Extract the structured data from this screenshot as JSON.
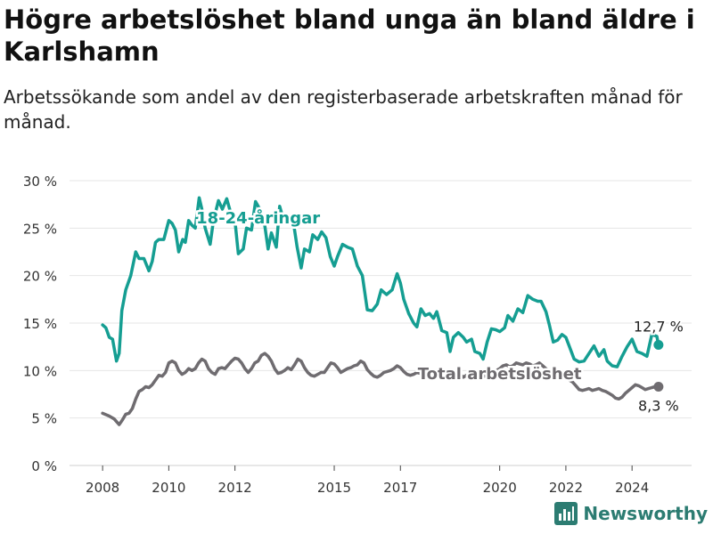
{
  "header": {
    "title": "Högre arbetslöshet bland unga än bland äldre i Karlshamn",
    "subtitle": "Arbetssökande som andel av den registerbaserade arbetskraften månad för månad."
  },
  "brand": {
    "name": "Newsworthy",
    "icon": "bar-chart-logo-icon",
    "color": "#2c7c72"
  },
  "chart_data": {
    "type": "line",
    "title": "Högre arbetslöshet bland unga än bland äldre i Karlshamn",
    "subtitle": "Arbetssökande som andel av den registerbaserade arbetskraften månad för månad.",
    "xlabel": "",
    "ylabel": "",
    "xlim": [
      2007.0,
      2025.8
    ],
    "ylim": [
      0,
      30
    ],
    "y_ticks": [
      0,
      5,
      10,
      15,
      20,
      25,
      30
    ],
    "y_tick_labels": [
      "0 %",
      "5 %",
      "10 %",
      "15 %",
      "20 %",
      "25 %",
      "30 %"
    ],
    "x_ticks": [
      2008,
      2010,
      2012,
      2015,
      2017,
      2020,
      2022,
      2024
    ],
    "x_tick_labels": [
      "2008",
      "2010",
      "2012",
      "2015",
      "2017",
      "2020",
      "2022",
      "2024"
    ],
    "grid": "horizontal",
    "legend": "none",
    "series": [
      {
        "name": "18-24-åringar",
        "color": "#159e92",
        "end_label": "12,7 %",
        "x": [
          2008.0,
          2008.1,
          2008.2,
          2008.3,
          2008.42,
          2008.5,
          2008.58,
          2008.7,
          2008.85,
          2009.0,
          2009.1,
          2009.25,
          2009.4,
          2009.5,
          2009.6,
          2009.7,
          2009.85,
          2010.0,
          2010.1,
          2010.2,
          2010.3,
          2010.42,
          2010.5,
          2010.6,
          2010.7,
          2010.8,
          2010.92,
          2011.0,
          2011.1,
          2011.25,
          2011.35,
          2011.5,
          2011.62,
          2011.75,
          2011.88,
          2012.0,
          2012.1,
          2012.25,
          2012.35,
          2012.5,
          2012.62,
          2012.75,
          2012.88,
          2013.0,
          2013.1,
          2013.25,
          2013.35,
          2013.5,
          2013.62,
          2013.75,
          2013.88,
          2014.0,
          2014.1,
          2014.25,
          2014.35,
          2014.5,
          2014.62,
          2014.75,
          2014.88,
          2015.0,
          2015.1,
          2015.25,
          2015.4,
          2015.55,
          2015.7,
          2015.85,
          2016.0,
          2016.15,
          2016.3,
          2016.42,
          2016.58,
          2016.75,
          2016.9,
          2017.0,
          2017.1,
          2017.25,
          2017.4,
          2017.5,
          2017.62,
          2017.75,
          2017.88,
          2018.0,
          2018.1,
          2018.25,
          2018.4,
          2018.5,
          2018.6,
          2018.75,
          2018.9,
          2019.0,
          2019.15,
          2019.25,
          2019.4,
          2019.5,
          2019.62,
          2019.75,
          2019.88,
          2020.0,
          2020.15,
          2020.25,
          2020.4,
          2020.55,
          2020.7,
          2020.85,
          2021.0,
          2021.15,
          2021.25,
          2021.4,
          2021.5,
          2021.62,
          2021.75,
          2021.88,
          2022.0,
          2022.1,
          2022.25,
          2022.4,
          2022.55,
          2022.7,
          2022.85,
          2023.0,
          2023.15,
          2023.25,
          2023.4,
          2023.55,
          2023.7,
          2023.85,
          2024.0,
          2024.15,
          2024.3,
          2024.45,
          2024.6,
          2024.75,
          2024.8
        ],
        "y": [
          14.8,
          14.5,
          13.5,
          13.3,
          11.0,
          11.8,
          16.3,
          18.5,
          20.0,
          22.5,
          21.8,
          21.8,
          20.5,
          21.5,
          23.5,
          23.8,
          23.8,
          25.8,
          25.5,
          24.8,
          22.5,
          23.8,
          23.5,
          25.8,
          25.3,
          25.0,
          28.2,
          27.0,
          25.0,
          23.3,
          25.8,
          27.9,
          27.0,
          28.1,
          26.5,
          25.8,
          22.3,
          22.8,
          25.0,
          24.8,
          27.8,
          27.0,
          25.8,
          22.8,
          24.5,
          23.0,
          27.3,
          25.5,
          25.8,
          26.0,
          23.0,
          20.8,
          22.8,
          22.5,
          24.3,
          23.8,
          24.6,
          24.0,
          22.0,
          21.0,
          22.0,
          23.3,
          23.0,
          22.8,
          21.0,
          20.0,
          16.4,
          16.3,
          17.0,
          18.5,
          18.0,
          18.5,
          20.2,
          19.2,
          17.5,
          16.0,
          15.0,
          14.6,
          16.5,
          15.8,
          16.0,
          15.5,
          16.2,
          14.2,
          14.0,
          12.0,
          13.5,
          14.0,
          13.5,
          13.0,
          13.3,
          12.0,
          11.8,
          11.2,
          13.0,
          14.4,
          14.3,
          14.1,
          14.5,
          15.8,
          15.2,
          16.5,
          16.1,
          17.9,
          17.5,
          17.3,
          17.3,
          16.2,
          14.8,
          13.0,
          13.2,
          13.8,
          13.5,
          12.6,
          11.2,
          10.9,
          11.0,
          11.8,
          12.6,
          11.5,
          12.2,
          11.0,
          10.5,
          10.4,
          11.5,
          12.5,
          13.3,
          12.0,
          11.8,
          11.5,
          13.8,
          13.6,
          12.7
        ],
        "y_unit": "%"
      },
      {
        "name": "Total arbetslöshet",
        "color": "#6f6c70",
        "end_label": "8,3 %",
        "x": [
          2008.0,
          2008.2,
          2008.35,
          2008.5,
          2008.6,
          2008.7,
          2008.8,
          2008.9,
          2009.0,
          2009.1,
          2009.2,
          2009.3,
          2009.4,
          2009.5,
          2009.6,
          2009.7,
          2009.8,
          2009.9,
          2010.0,
          2010.1,
          2010.2,
          2010.3,
          2010.4,
          2010.5,
          2010.6,
          2010.7,
          2010.8,
          2010.9,
          2011.0,
          2011.1,
          2011.2,
          2011.3,
          2011.4,
          2011.5,
          2011.6,
          2011.7,
          2011.8,
          2011.9,
          2012.0,
          2012.1,
          2012.2,
          2012.3,
          2012.4,
          2012.5,
          2012.6,
          2012.7,
          2012.8,
          2012.9,
          2013.0,
          2013.1,
          2013.2,
          2013.3,
          2013.4,
          2013.5,
          2013.6,
          2013.7,
          2013.8,
          2013.9,
          2014.0,
          2014.1,
          2014.2,
          2014.3,
          2014.4,
          2014.5,
          2014.6,
          2014.7,
          2014.8,
          2014.9,
          2015.0,
          2015.1,
          2015.2,
          2015.3,
          2015.4,
          2015.5,
          2015.6,
          2015.7,
          2015.8,
          2015.9,
          2016.0,
          2016.1,
          2016.2,
          2016.3,
          2016.4,
          2016.5,
          2016.6,
          2016.7,
          2016.8,
          2016.9,
          2017.0,
          2017.1,
          2017.2,
          2017.3,
          2017.4,
          2017.5,
          2017.6,
          2017.7,
          2017.8,
          2017.9,
          2018.0,
          2018.1,
          2018.2,
          2018.3,
          2018.4,
          2018.5,
          2018.6,
          2018.7,
          2018.8,
          2018.9,
          2019.0,
          2019.2,
          2019.4,
          2019.6,
          2019.8,
          2020.0,
          2020.1,
          2020.2,
          2020.3,
          2020.4,
          2020.5,
          2020.6,
          2020.7,
          2020.8,
          2020.9,
          2021.0,
          2021.1,
          2021.2,
          2021.3,
          2021.4,
          2021.5,
          2021.6,
          2021.7,
          2021.8,
          2021.9,
          2022.0,
          2022.1,
          2022.2,
          2022.3,
          2022.4,
          2022.5,
          2022.6,
          2022.7,
          2022.8,
          2022.9,
          2023.0,
          2023.1,
          2023.2,
          2023.3,
          2023.4,
          2023.5,
          2023.6,
          2023.7,
          2023.8,
          2023.9,
          2024.0,
          2024.1,
          2024.2,
          2024.3,
          2024.4,
          2024.5,
          2024.6,
          2024.7,
          2024.8
        ],
        "y": [
          5.5,
          5.2,
          4.9,
          4.3,
          4.8,
          5.4,
          5.5,
          6.0,
          7.0,
          7.8,
          8.0,
          8.3,
          8.2,
          8.5,
          9.0,
          9.5,
          9.4,
          9.8,
          10.8,
          11.0,
          10.8,
          10.0,
          9.6,
          9.8,
          10.2,
          10.0,
          10.2,
          10.8,
          11.2,
          11.0,
          10.2,
          9.8,
          9.6,
          10.2,
          10.3,
          10.2,
          10.6,
          11.0,
          11.3,
          11.2,
          10.8,
          10.2,
          9.8,
          10.2,
          10.8,
          11.0,
          11.6,
          11.8,
          11.5,
          11.0,
          10.2,
          9.7,
          9.8,
          10.0,
          10.3,
          10.1,
          10.6,
          11.2,
          11.0,
          10.3,
          9.8,
          9.5,
          9.4,
          9.6,
          9.8,
          9.8,
          10.3,
          10.8,
          10.7,
          10.3,
          9.8,
          10.0,
          10.2,
          10.3,
          10.5,
          10.6,
          11.0,
          10.8,
          10.1,
          9.7,
          9.4,
          9.3,
          9.5,
          9.8,
          9.9,
          10.0,
          10.2,
          10.5,
          10.3,
          9.9,
          9.6,
          9.5,
          9.6,
          9.8,
          9.7,
          9.6,
          9.8,
          10.0,
          9.8,
          9.6,
          9.5,
          9.6,
          9.5,
          9.4,
          9.3,
          9.5,
          9.6,
          9.3,
          9.5,
          9.4,
          9.2,
          9.5,
          9.8,
          10.2,
          10.5,
          10.6,
          10.4,
          10.5,
          10.8,
          10.7,
          10.6,
          10.8,
          10.7,
          10.5,
          10.6,
          10.8,
          10.5,
          10.2,
          9.9,
          9.7,
          9.5,
          9.4,
          9.4,
          9.2,
          9.0,
          8.8,
          8.4,
          8.0,
          7.9,
          8.0,
          8.1,
          7.9,
          8.0,
          8.1,
          7.9,
          7.8,
          7.6,
          7.4,
          7.1,
          7.0,
          7.2,
          7.6,
          7.9,
          8.2,
          8.5,
          8.4,
          8.2,
          8.0,
          8.1,
          8.2,
          8.3,
          8.3
        ],
        "y_unit": "%"
      }
    ]
  }
}
